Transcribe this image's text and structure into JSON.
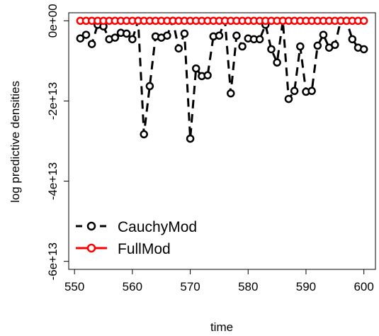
{
  "chart_data": {
    "type": "line",
    "x_label": "time",
    "y_label": "log predictive densities",
    "x": [
      551,
      552,
      553,
      554,
      555,
      556,
      557,
      558,
      559,
      560,
      561,
      562,
      563,
      564,
      565,
      566,
      567,
      568,
      569,
      570,
      571,
      572,
      573,
      574,
      575,
      576,
      577,
      578,
      579,
      580,
      581,
      582,
      583,
      584,
      585,
      586,
      587,
      588,
      589,
      590,
      591,
      592,
      593,
      594,
      595,
      596,
      597,
      598,
      599,
      600
    ],
    "series": [
      {
        "name": "CauchyMod",
        "color": "#000000",
        "dashed": true,
        "values": [
          -4400000000000.0,
          -3500000000000.0,
          -5800000000000.0,
          -1000000000000.0,
          -1400000000000.0,
          -4600000000000.0,
          -4200000000000.0,
          -3000000000000.0,
          -3200000000000.0,
          -4600000000000.0,
          0,
          -28300000000000.0,
          -16300000000000.0,
          -3900000000000.0,
          -4200000000000.0,
          -3700000000000.0,
          0,
          -6900000000000.0,
          -3200000000000.0,
          -29400000000000.0,
          -11900000000000.0,
          -13800000000000.0,
          -13600000000000.0,
          -3900000000000.0,
          -3700000000000.0,
          0,
          -18100000000000.0,
          -3700000000000.0,
          -6400000000000.0,
          -4400000000000.0,
          -4600000000000.0,
          -4600000000000.0,
          -1000000000000.0,
          -7100000000000.0,
          -10400000000000.0,
          0,
          -19500000000000.0,
          -17500000000000.0,
          -6400000000000.0,
          -17700000000000.0,
          -17500000000000.0,
          -6200000000000.0,
          -3500000000000.0,
          -6700000000000.0,
          -6000000000000.0,
          0,
          0,
          -4600000000000.0,
          -6700000000000.0,
          -7100000000000.0
        ]
      },
      {
        "name": "FullMod",
        "color": "#ff0000",
        "dashed": false,
        "values": [
          0,
          0,
          0,
          0,
          0,
          0,
          0,
          0,
          0,
          0,
          0,
          0,
          0,
          0,
          0,
          0,
          0,
          0,
          0,
          0,
          0,
          0,
          0,
          0,
          0,
          0,
          0,
          0,
          0,
          0,
          0,
          0,
          0,
          0,
          0,
          0,
          0,
          0,
          0,
          0,
          0,
          0,
          0,
          0,
          0,
          0,
          0,
          0,
          0,
          0
        ]
      }
    ],
    "xlim": [
      549,
      602
    ],
    "xticks": [
      550,
      560,
      570,
      580,
      590,
      600
    ],
    "ylim": [
      -62000000000000,
      2000000000000
    ],
    "yticks": [
      {
        "value": -60000000000000,
        "label": "-6e+13"
      },
      {
        "value": -40000000000000,
        "label": "-4e+13"
      },
      {
        "value": -20000000000000,
        "label": "-2e+13"
      },
      {
        "value": 0,
        "label": "0e+00"
      }
    ],
    "legend": "bottom-left"
  }
}
